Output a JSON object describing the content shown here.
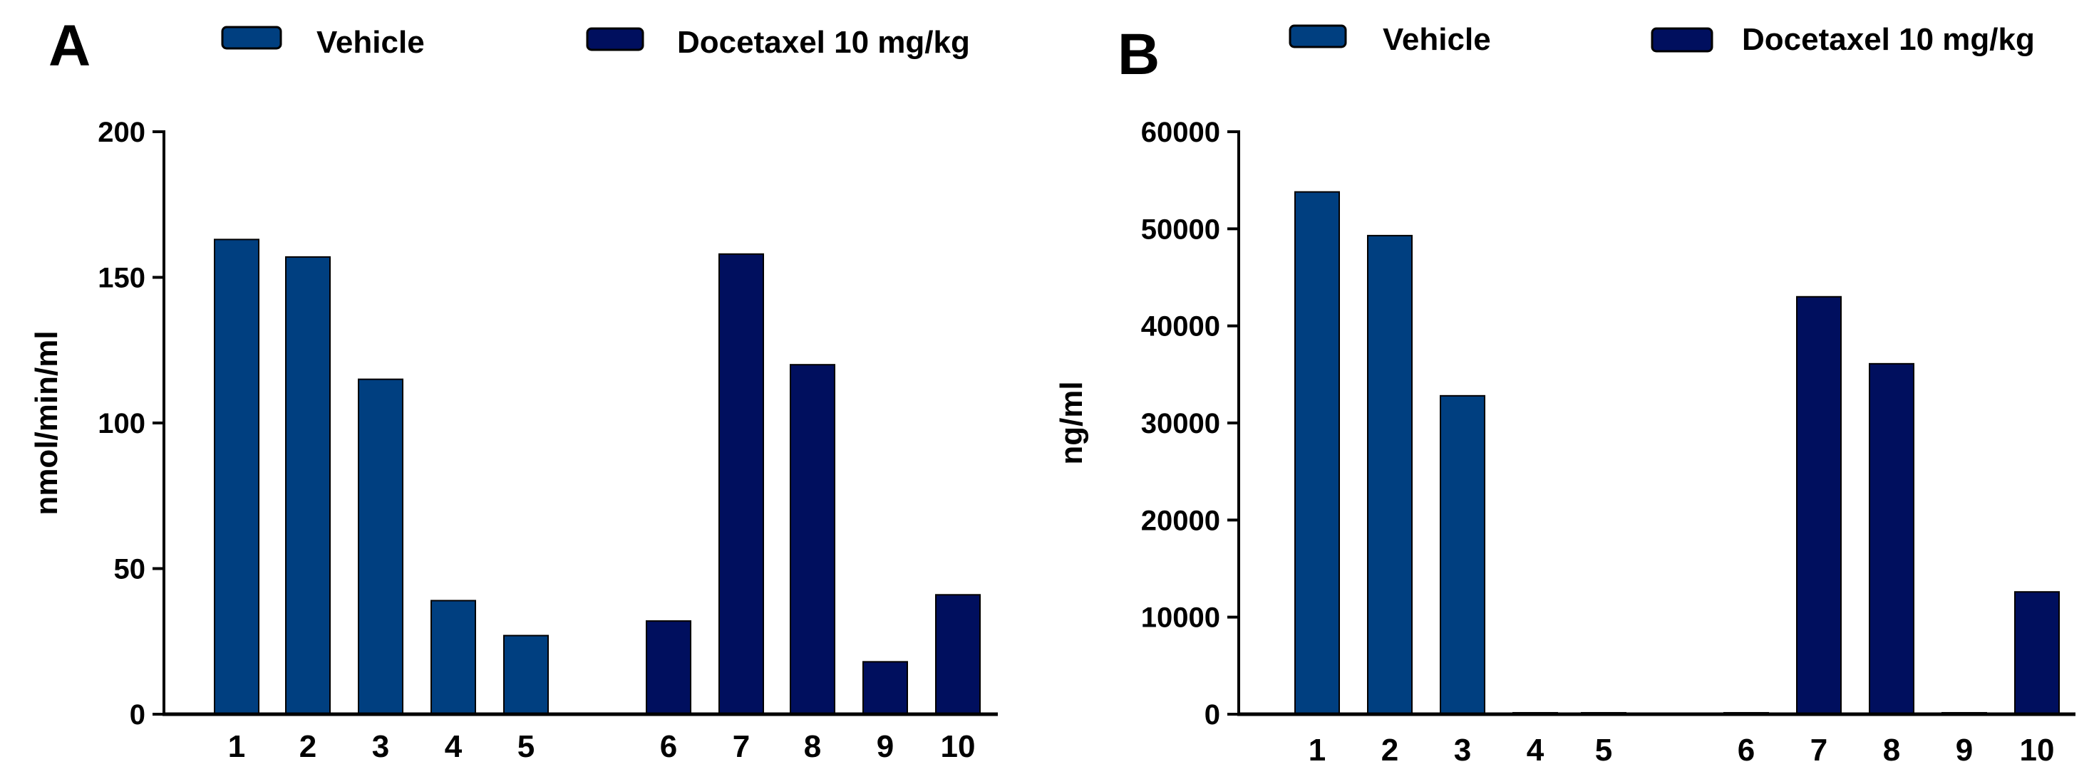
{
  "colors": {
    "vehicle": "#003f80",
    "docetaxel": "#000f5e",
    "axis": "#000000",
    "background": "#ffffff"
  },
  "chart_data": [
    {
      "type": "bar",
      "panel": "A",
      "title": "",
      "xlabel": "",
      "ylabel": "nmol/min/ml",
      "ylim": [
        0,
        200
      ],
      "yticks": [
        0,
        50,
        100,
        150,
        200
      ],
      "legend": {
        "placement": "top",
        "entries": [
          "Vehicle",
          "Docetaxel 10 mg/kg"
        ]
      },
      "series": [
        {
          "name": "Vehicle",
          "color_key": "vehicle",
          "categories": [
            "1",
            "2",
            "3",
            "4",
            "5"
          ],
          "values": [
            163,
            157,
            115,
            39,
            27
          ]
        },
        {
          "name": "Docetaxel 10 mg/kg",
          "color_key": "docetaxel",
          "categories": [
            "6",
            "7",
            "8",
            "9",
            "10"
          ],
          "values": [
            32,
            158,
            120,
            18,
            41
          ]
        }
      ]
    },
    {
      "type": "bar",
      "panel": "B",
      "title": "",
      "xlabel": "",
      "ylabel": "ng/ml",
      "ylim": [
        0,
        60000
      ],
      "yticks": [
        0,
        10000,
        20000,
        30000,
        40000,
        50000,
        60000
      ],
      "legend": {
        "placement": "top",
        "entries": [
          "Vehicle",
          "Docetaxel 10 mg/kg"
        ]
      },
      "series": [
        {
          "name": "Vehicle",
          "color_key": "vehicle",
          "categories": [
            "1",
            "2",
            "3",
            "4",
            "5"
          ],
          "values": [
            53800,
            49300,
            32800,
            150,
            150
          ]
        },
        {
          "name": "Docetaxel 10 mg/kg",
          "color_key": "docetaxel",
          "categories": [
            "6",
            "7",
            "8",
            "9",
            "10"
          ],
          "values": [
            150,
            43000,
            36100,
            150,
            12600
          ]
        }
      ]
    }
  ]
}
